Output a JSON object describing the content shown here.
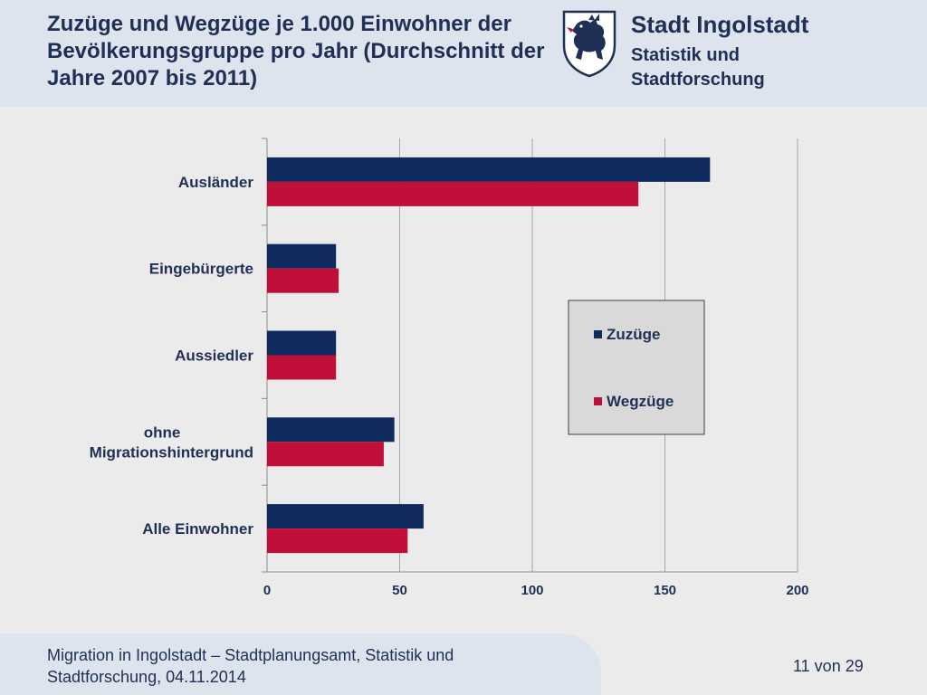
{
  "header": {
    "title": "Zuzüge und Wegzüge je 1.000 Einwohner der Bevölkerungsgruppe pro Jahr (Durchschnitt der Jahre 2007 bis 2011)",
    "org_name": "Stadt Ingolstadt",
    "org_sub": "Statistik und Stadtforschung",
    "crest_icon": "ingolstadt-panther-crest-icon"
  },
  "colors": {
    "zuzuege": "#0f2a5c",
    "wegzuege": "#c0103a",
    "header_bg": "#dde4ee",
    "page_bg": "#ebebeb",
    "legend_bg": "#d9d9d9"
  },
  "chart_data": {
    "type": "bar",
    "orientation": "horizontal",
    "categories": [
      "Ausländer",
      "Eingebürgerte",
      "Aussiedler",
      "ohne Migrationshintergrund",
      "Alle Einwohner"
    ],
    "series": [
      {
        "name": "Zuzüge",
        "values": [
          167,
          26,
          26,
          48,
          59
        ]
      },
      {
        "name": "Wegzüge",
        "values": [
          140,
          27,
          26,
          44,
          53
        ]
      }
    ],
    "xlim": [
      0,
      200
    ],
    "xticks": [
      "0",
      "50",
      "100",
      "150",
      "200"
    ],
    "grid": "vertical",
    "legend_position": "right-center"
  },
  "footer": {
    "text": "Migration in Ingolstadt – Stadtplanungsamt, Statistik und Stadtforschung, 04.11.2014",
    "page": "11 von 29"
  }
}
